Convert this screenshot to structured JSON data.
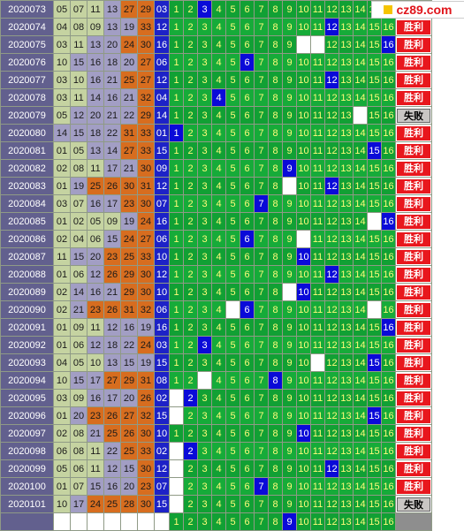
{
  "logo": {
    "text": "cz89.com"
  },
  "colors": {
    "win": "#e8171d",
    "lose": "#c9c6c4",
    "hit": "#0a0ad8",
    "grid": "#11a034"
  },
  "rows": [
    {
      "period": "2020073",
      "nums": [
        "05",
        "07",
        "11",
        "13",
        "27",
        "29"
      ],
      "blue": "03",
      "hit": 3,
      "blank": [],
      "result": "win"
    },
    {
      "period": "2020074",
      "nums": [
        "04",
        "08",
        "09",
        "13",
        "19",
        "33"
      ],
      "blue": "12",
      "hit": 12,
      "blank": [],
      "result": "win"
    },
    {
      "period": "2020075",
      "nums": [
        "03",
        "11",
        "13",
        "20",
        "24",
        "30"
      ],
      "blue": "16",
      "hit": 16,
      "blank": [
        10,
        11
      ],
      "result": "win"
    },
    {
      "period": "2020076",
      "nums": [
        "10",
        "15",
        "16",
        "18",
        "20",
        "27"
      ],
      "blue": "06",
      "hit": 6,
      "blank": [],
      "result": "win"
    },
    {
      "period": "2020077",
      "nums": [
        "03",
        "10",
        "16",
        "21",
        "25",
        "27"
      ],
      "blue": "12",
      "hit": 12,
      "blank": [],
      "result": "win"
    },
    {
      "period": "2020078",
      "nums": [
        "03",
        "11",
        "14",
        "16",
        "21",
        "32"
      ],
      "blue": "04",
      "hit": 4,
      "blank": [],
      "result": "win"
    },
    {
      "period": "2020079",
      "nums": [
        "05",
        "12",
        "20",
        "21",
        "22",
        "29"
      ],
      "blue": "14",
      "hit": null,
      "blank": [
        14
      ],
      "result": "lose"
    },
    {
      "period": "2020080",
      "nums": [
        "14",
        "15",
        "18",
        "22",
        "31",
        "33"
      ],
      "blue": "01",
      "hit": 1,
      "blank": [],
      "result": "win"
    },
    {
      "period": "2020081",
      "nums": [
        "01",
        "05",
        "13",
        "14",
        "27",
        "33"
      ],
      "blue": "15",
      "hit": 15,
      "blank": [],
      "result": "win"
    },
    {
      "period": "2020082",
      "nums": [
        "02",
        "08",
        "11",
        "17",
        "21",
        "30"
      ],
      "blue": "09",
      "hit": 9,
      "blank": [],
      "result": "win"
    },
    {
      "period": "2020083",
      "nums": [
        "01",
        "19",
        "25",
        "26",
        "30",
        "31"
      ],
      "blue": "12",
      "hit": 12,
      "blank": [
        9
      ],
      "result": "win"
    },
    {
      "period": "2020084",
      "nums": [
        "03",
        "07",
        "16",
        "17",
        "23",
        "30"
      ],
      "blue": "07",
      "hit": 7,
      "blank": [],
      "result": "win"
    },
    {
      "period": "2020085",
      "nums": [
        "01",
        "02",
        "05",
        "09",
        "19",
        "24"
      ],
      "blue": "16",
      "hit": 16,
      "blank": [
        15
      ],
      "result": "win"
    },
    {
      "period": "2020086",
      "nums": [
        "02",
        "04",
        "06",
        "15",
        "24",
        "27"
      ],
      "blue": "06",
      "hit": 6,
      "blank": [
        10
      ],
      "result": "win"
    },
    {
      "period": "2020087",
      "nums": [
        "11",
        "15",
        "20",
        "23",
        "25",
        "33"
      ],
      "blue": "10",
      "hit": 10,
      "blank": [],
      "result": "win"
    },
    {
      "period": "2020088",
      "nums": [
        "01",
        "06",
        "12",
        "26",
        "29",
        "30"
      ],
      "blue": "12",
      "hit": 12,
      "blank": [],
      "result": "win"
    },
    {
      "period": "2020089",
      "nums": [
        "02",
        "14",
        "16",
        "21",
        "29",
        "30"
      ],
      "blue": "10",
      "hit": 10,
      "blank": [
        9
      ],
      "result": "win"
    },
    {
      "period": "2020090",
      "nums": [
        "02",
        "21",
        "23",
        "26",
        "31",
        "32"
      ],
      "blue": "06",
      "hit": 6,
      "blank": [
        5,
        15
      ],
      "result": "win"
    },
    {
      "period": "2020091",
      "nums": [
        "01",
        "09",
        "11",
        "12",
        "16",
        "19"
      ],
      "blue": "16",
      "hit": 16,
      "blank": [],
      "result": "win"
    },
    {
      "period": "2020092",
      "nums": [
        "01",
        "06",
        "12",
        "18",
        "22",
        "24"
      ],
      "blue": "03",
      "hit": 3,
      "blank": [],
      "result": "win"
    },
    {
      "period": "2020093",
      "nums": [
        "04",
        "05",
        "10",
        "13",
        "15",
        "19"
      ],
      "blue": "15",
      "hit": 15,
      "blank": [
        11
      ],
      "result": "win"
    },
    {
      "period": "2020094",
      "nums": [
        "10",
        "15",
        "17",
        "27",
        "29",
        "31"
      ],
      "blue": "08",
      "hit": 8,
      "blank": [
        3
      ],
      "result": "win"
    },
    {
      "period": "2020095",
      "nums": [
        "03",
        "09",
        "16",
        "17",
        "20",
        "26"
      ],
      "blue": "02",
      "hit": 2,
      "blank": [
        1
      ],
      "result": "win"
    },
    {
      "period": "2020096",
      "nums": [
        "01",
        "20",
        "23",
        "26",
        "27",
        "32"
      ],
      "blue": "15",
      "hit": 15,
      "blank": [
        1
      ],
      "result": "win"
    },
    {
      "period": "2020097",
      "nums": [
        "02",
        "08",
        "21",
        "25",
        "26",
        "30"
      ],
      "blue": "10",
      "hit": 10,
      "blank": [],
      "result": "win"
    },
    {
      "period": "2020098",
      "nums": [
        "06",
        "08",
        "11",
        "22",
        "25",
        "33"
      ],
      "blue": "02",
      "hit": 2,
      "blank": [
        1
      ],
      "result": "win"
    },
    {
      "period": "2020099",
      "nums": [
        "05",
        "06",
        "11",
        "12",
        "15",
        "30"
      ],
      "blue": "12",
      "hit": 12,
      "blank": [
        1
      ],
      "result": "win"
    },
    {
      "period": "2020100",
      "nums": [
        "01",
        "07",
        "15",
        "16",
        "20",
        "23"
      ],
      "blue": "07",
      "hit": 7,
      "blank": [
        1
      ],
      "result": "win"
    },
    {
      "period": "2020101",
      "nums": [
        "10",
        "17",
        "24",
        "25",
        "28",
        "30"
      ],
      "blue": "15",
      "hit": null,
      "blank": [
        1
      ],
      "result": "lose"
    }
  ],
  "predict_row": {
    "hit": 9,
    "blank": []
  },
  "labels": {
    "win": "胜利",
    "lose": "失败"
  }
}
